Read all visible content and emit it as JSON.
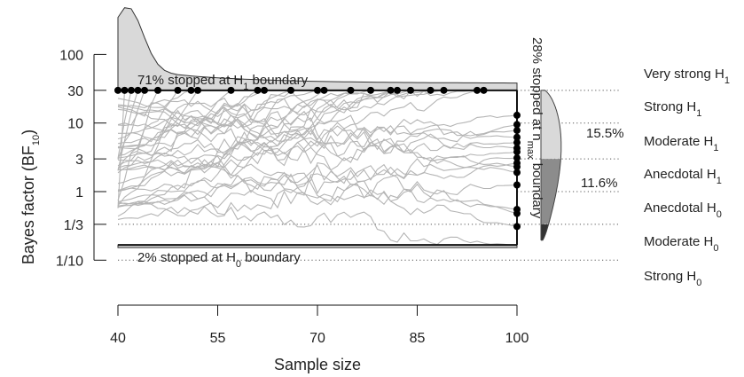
{
  "chart_data": {
    "type": "line",
    "xlabel": "Sample size",
    "ylabel": "Bayes factor (BF",
    "ylabel_sub": "10",
    "ylabel_close": ")",
    "x_ticks": [
      {
        "value": 40,
        "label": "40"
      },
      {
        "value": 55,
        "label": "55"
      },
      {
        "value": 70,
        "label": "70"
      },
      {
        "value": 85,
        "label": "85"
      },
      {
        "value": 100,
        "label": "100"
      }
    ],
    "y_ticks": [
      {
        "value": 0.1,
        "label": "1/10"
      },
      {
        "value": 0.3333,
        "label": "1/3"
      },
      {
        "value": 1,
        "label": "1"
      },
      {
        "value": 3,
        "label": "3"
      },
      {
        "value": 10,
        "label": "10"
      },
      {
        "value": 30,
        "label": "30"
      },
      {
        "value": 100,
        "label": "100"
      }
    ],
    "xlim": [
      40,
      100
    ],
    "ylim": [
      0.1,
      100
    ],
    "y_scale": "log",
    "grid": false,
    "evidence_lines": [
      0.1,
      0.3333,
      1,
      3,
      10,
      30
    ],
    "boundaries": {
      "upper": 30,
      "lower": 0.1667,
      "n_max": 100
    },
    "evidence_categories": [
      {
        "label": "Very strong H",
        "sub": "1"
      },
      {
        "label": "Strong H",
        "sub": "1"
      },
      {
        "label": "Moderate H",
        "sub": "1"
      },
      {
        "label": "Anecdotal H",
        "sub": "1"
      },
      {
        "label": "Anecdotal H",
        "sub": "0"
      },
      {
        "label": "Moderate H",
        "sub": "0"
      },
      {
        "label": "Strong H",
        "sub": "0"
      }
    ],
    "annotations": {
      "upper": {
        "pre": "71% stopped at H",
        "sub": "1",
        "post": " boundary"
      },
      "lower": {
        "pre": "2% stopped at H",
        "sub": "0",
        "post": " boundary"
      },
      "nmax": {
        "pre": "28% stopped at n",
        "sub": "max",
        "post": " boundary"
      },
      "pct_h1": "15.5%",
      "pct_h0": "11.6%"
    },
    "upper_stop_n": [
      40,
      41,
      42,
      43,
      44,
      46,
      49,
      51,
      52,
      57,
      61,
      62,
      66,
      70,
      71,
      75,
      78,
      81,
      82,
      84,
      87,
      89,
      94,
      95
    ],
    "nmax_endpoints": [
      13,
      9.5,
      7.8,
      6.2,
      5.2,
      4.3,
      3.8,
      3.1,
      2.6,
      2.3,
      1.9,
      1.25,
      0.55,
      0.48,
      0.31
    ],
    "colors": {
      "line": "#b5b5b5",
      "density": "#d9d9d9",
      "dark": "#8c8c8c",
      "darkest": "#333333",
      "dot": "#000000"
    }
  }
}
